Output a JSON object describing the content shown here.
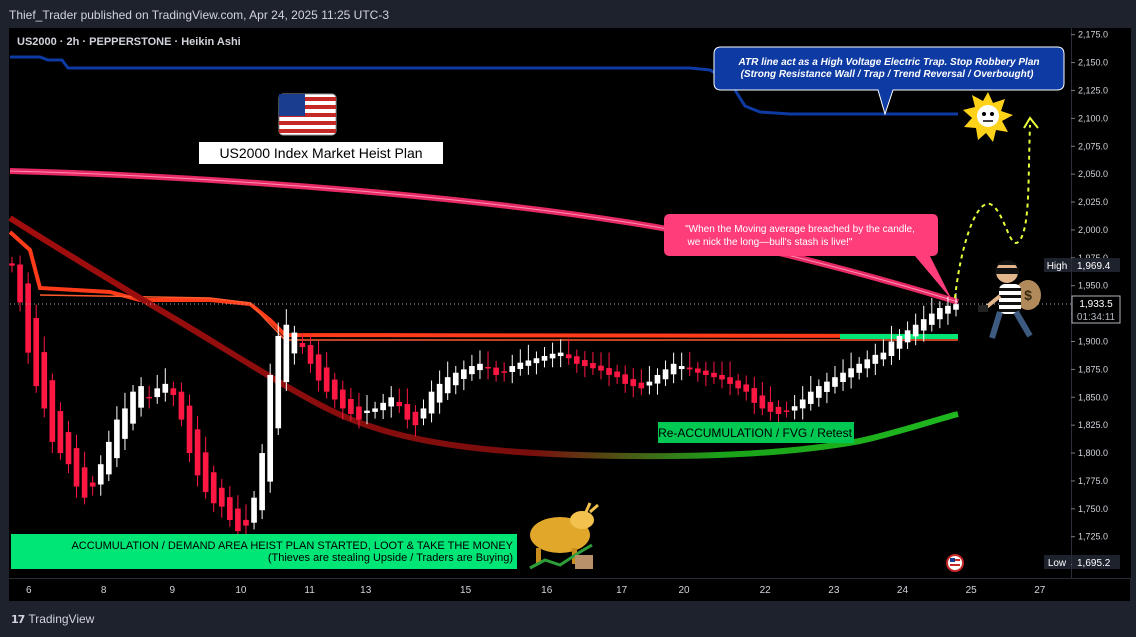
{
  "publisher_line": "Thief_Trader published on TradingView.com, Apr 24, 2025 11:25 UTC-3",
  "symbol_line": "US2000 · 2h · PEPPERSTONE · Heikin Ashi",
  "footer_brand": "TradingView",
  "chart_data": {
    "type": "candlestick",
    "symbol": "US2000",
    "interval": "2h",
    "broker": "PEPPERSTONE",
    "candle_style": "Heikin Ashi",
    "y_ticks": [
      1700,
      1725,
      1750,
      1775,
      1800,
      1825,
      1850,
      1875,
      1900,
      1925,
      1950,
      1975,
      2000,
      2025,
      2050,
      2075,
      2100,
      2125,
      2150,
      2175
    ],
    "y_tick_labels": [
      "1,700.0",
      "1,725.0",
      "1,750.0",
      "1,775.0",
      "1,800.0",
      "1,825.0",
      "1,850.0",
      "1,875.0",
      "1,900.0",
      "1,925.0",
      "1,950.0",
      "1,975.0",
      "2,000.0",
      "2,025.0",
      "2,050.0",
      "2,075.0",
      "2,100.0",
      "2,125.0",
      "2,150.0",
      "2,175.0"
    ],
    "ylim": [
      1688,
      2181
    ],
    "x_tick_labels": [
      "6",
      "8",
      "9",
      "10",
      "11",
      "13",
      "15",
      "16",
      "17",
      "20",
      "22",
      "23",
      "24",
      "25",
      "27"
    ],
    "x_tick_index": [
      3,
      15,
      26,
      37,
      48,
      57,
      73,
      86,
      98,
      108,
      121,
      132,
      143,
      154,
      165
    ],
    "x_domain": [
      0,
      170
    ],
    "high_label": "High",
    "high_value": "1,969.4",
    "low_label": "Low",
    "low_value": "1,695.2",
    "last_price": "1,933.5",
    "countdown": "01:34:11",
    "last_price_value": 1933.5,
    "candle_closes": [
      1968,
      1935,
      1890,
      1860,
      1840,
      1810,
      1800,
      1790,
      1770,
      1760,
      1770,
      1790,
      1810,
      1830,
      1840,
      1855,
      1860,
      1850,
      1858,
      1862,
      1852,
      1830,
      1800,
      1780,
      1765,
      1755,
      1752,
      1740,
      1730,
      1735,
      1760,
      1800,
      1870,
      1905,
      1915,
      1908,
      1895,
      1880,
      1865,
      1855,
      1848,
      1840,
      1835,
      1830,
      1838,
      1840,
      1845,
      1850,
      1842,
      1830,
      1825,
      1840,
      1855,
      1862,
      1868,
      1872,
      1875,
      1878,
      1880,
      1876,
      1870,
      1872,
      1878,
      1881,
      1883,
      1885,
      1887,
      1889,
      1890,
      1885,
      1880,
      1878,
      1876,
      1874,
      1870,
      1868,
      1862,
      1860,
      1858,
      1864,
      1870,
      1875,
      1880,
      1878,
      1875,
      1872,
      1870,
      1868,
      1866,
      1862,
      1858,
      1855,
      1845,
      1840,
      1837,
      1835,
      1838,
      1842,
      1848,
      1855,
      1860,
      1864,
      1868,
      1872,
      1876,
      1880,
      1884,
      1888,
      1890,
      1900,
      1905,
      1910,
      1915,
      1920,
      1925,
      1930,
      1932,
      1933.5
    ],
    "series": [
      {
        "name": "",
        "color": "#0d3aa3",
        "values": [
          2157,
          2157,
          2152,
          2150,
          2150,
          2150,
          2150,
          2150,
          2150,
          2149,
          2149,
          2149,
          2148,
          2147,
          2145,
          2138,
          2128,
          2120,
          2110,
          2108,
          2108
        ]
      },
      {
        "name": "",
        "color": "#ff2d6f",
        "values": [
          2055,
          2045,
          2030,
          2018,
          2008,
          1998,
          1988,
          1978,
          1968,
          1958,
          1948,
          1942,
          1938
        ]
      },
      {
        "name": "",
        "color": "#ff3b1a",
        "values": [
          1947,
          1944,
          1943,
          1942,
          1935,
          1908,
          1906,
          1906,
          1906,
          1906,
          1906,
          1906,
          1906,
          1906
        ]
      },
      {
        "name": "",
        "color": "#c51111",
        "values": [
          2000,
          1975,
          1945,
          1905,
          1865,
          1838,
          1818,
          1808,
          1800,
          1798,
          1796,
          1796,
          1798,
          1802,
          1808,
          1830
        ]
      }
    ],
    "demand_zone_label": "1,902–1,906"
  },
  "annotations": {
    "title_badge": "US2000 Index Market Heist Plan",
    "atr_note_line1": "ATR line act as a High Voltage Electric Trap. Stop Robbery Plan",
    "atr_note_line2": "(Strong Resistance Wall / Trap / Trend Reversal / Overbought)",
    "ma_note_line1": "\"When the Moving average breached by the candle,",
    "ma_note_line2": "we nick the long—bull's stash is live!\"",
    "reaccum_label": "Re-ACCUMULATION / FVG / Retest",
    "accum_line1": "ACCUMULATION / DEMAND AREA HEIST PLAN STARTED, LOOT & TAKE THE MONEY",
    "accum_line2": "(Thieves are stealing Upside / Traders are Buying)"
  },
  "colors": {
    "background": "#000000",
    "up_candle": "#ffffff",
    "down_candle": "#ff1744",
    "atr_line": "#0d3aa3",
    "ma_pink": "#ff2d6f",
    "ma_red": "#c51111",
    "ma_green": "#1aa31a",
    "demand_zone": "#00e676",
    "note_blue": "#0d3aa3",
    "note_pink": "#ff3d7a",
    "green_label": "#00c853"
  }
}
